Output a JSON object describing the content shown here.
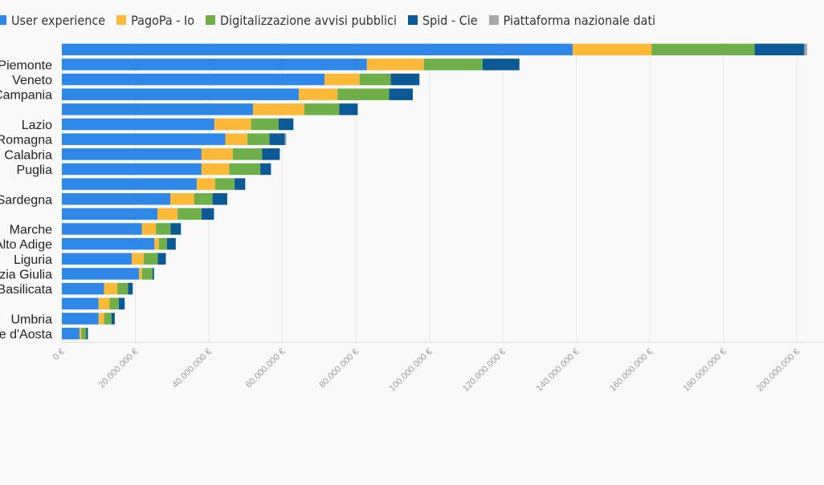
{
  "chart_data": {
    "type": "bar",
    "orientation": "horizontal",
    "stacked": true,
    "title": "",
    "xlabel": "",
    "ylabel": "",
    "legend_position": "top-left",
    "grid": true,
    "xlim": [
      0,
      203000000
    ],
    "x_ticks": [
      0,
      20000000,
      40000000,
      60000000,
      80000000,
      100000000,
      120000000,
      140000000,
      160000000,
      180000000,
      200000000
    ],
    "x_tick_labels": [
      "0 €",
      "20.000.000 €",
      "40.000.000 €",
      "60.000.000 €",
      "80.000.000 €",
      "100.000.000 €",
      "120.000.000 €",
      "140.000.000 €",
      "160.000.000 €",
      "180.000.000 €",
      "200.000.000 €"
    ],
    "categories": [
      "",
      "Piemonte",
      "Veneto",
      "Campania",
      "",
      "Lazio",
      "Romagna",
      "Calabria",
      "Puglia",
      "",
      "Sardegna",
      "",
      "Marche",
      "Alto Adige",
      "Liguria",
      "zia Giulia",
      "Basilicata",
      "",
      "Umbria",
      "e d'Aosta"
    ],
    "series": [
      {
        "name": "User experience",
        "color": "#2f87e8",
        "values": [
          139000000,
          83000000,
          71500000,
          64500000,
          52000000,
          41500000,
          44500000,
          38000000,
          38000000,
          36700000,
          29500000,
          26000000,
          21800000,
          25200000,
          19000000,
          21000000,
          11500000,
          10000000,
          10000000,
          4800000
        ]
      },
      {
        "name": "PagoPa - Io",
        "color": "#fbb937",
        "values": [
          21500000,
          15500000,
          9500000,
          10500000,
          14000000,
          10000000,
          6000000,
          8500000,
          7500000,
          5000000,
          6500000,
          5500000,
          3800000,
          1200000,
          3300000,
          800000,
          3600000,
          3000000,
          1500000,
          500000
        ]
      },
      {
        "name": "Digitalizzazione avvisi pubblici",
        "color": "#6faf4a",
        "values": [
          28000000,
          16000000,
          8500000,
          14000000,
          9500000,
          7500000,
          6000000,
          8000000,
          8500000,
          5300000,
          5000000,
          6500000,
          4000000,
          2200000,
          3800000,
          2900000,
          2900000,
          2500000,
          2000000,
          1300000
        ]
      },
      {
        "name": "Spid - Cie",
        "color": "#0b5a96",
        "values": [
          13500000,
          10000000,
          7800000,
          6500000,
          5000000,
          4000000,
          4200000,
          4800000,
          2900000,
          2900000,
          4000000,
          3400000,
          2800000,
          2400000,
          2200000,
          400000,
          1300000,
          1600000,
          900000,
          500000
        ]
      },
      {
        "name": "Piattaforma nazionale dati",
        "color": "#a8a8a8",
        "values": [
          800000,
          0,
          0,
          0,
          0,
          0,
          400000,
          0,
          0,
          0,
          0,
          0,
          0,
          0,
          0,
          0,
          0,
          0,
          0,
          0
        ]
      }
    ]
  }
}
